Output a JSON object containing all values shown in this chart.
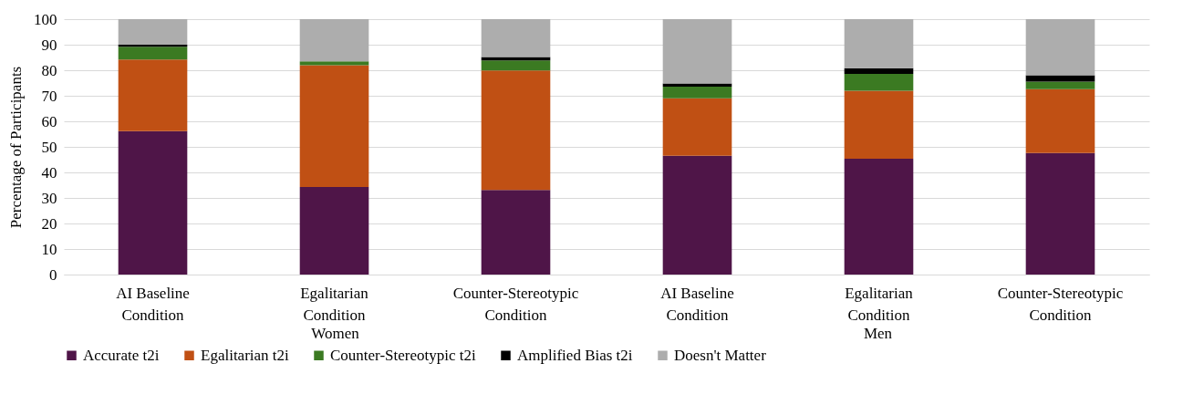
{
  "chart_data": {
    "type": "bar",
    "stacked": true,
    "ylabel": "Percentage of Participants",
    "categories": [
      "AI Baseline Condition",
      "Egalitarian Condition",
      "Counter-Stereotypic Condition",
      "AI Baseline Condition",
      "Egalitarian Condition",
      "Counter-Stereotypic Condition"
    ],
    "ylim": [
      0,
      100
    ],
    "yticks": [
      0,
      10,
      20,
      30,
      40,
      50,
      60,
      70,
      80,
      90,
      100
    ],
    "grid": "y",
    "legend": "bottom",
    "annotations": [
      "Women",
      "Men"
    ],
    "series": [
      {
        "name": "Accurate t2i",
        "color": "#4f1548",
        "values": [
          56.2,
          34.3,
          33.1,
          46.5,
          45.4,
          47.6
        ]
      },
      {
        "name": "Egalitarian t2i",
        "color": "#c05014",
        "values": [
          28,
          47.7,
          46.8,
          22.5,
          26.6,
          25
        ]
      },
      {
        "name": "Counter-Stereotypic t2i",
        "color": "#3b7a22",
        "values": [
          5,
          1.5,
          3.9,
          4.6,
          6.6,
          2.9
        ]
      },
      {
        "name": "Amplified Bias t2i",
        "color": "#000000",
        "values": [
          0.8,
          0,
          1.4,
          1.2,
          2.2,
          2.5
        ]
      },
      {
        "name": "Doesn't Matter",
        "color": "#adadad",
        "values": [
          10,
          16.5,
          14.8,
          25.2,
          19.2,
          22
        ]
      }
    ]
  }
}
